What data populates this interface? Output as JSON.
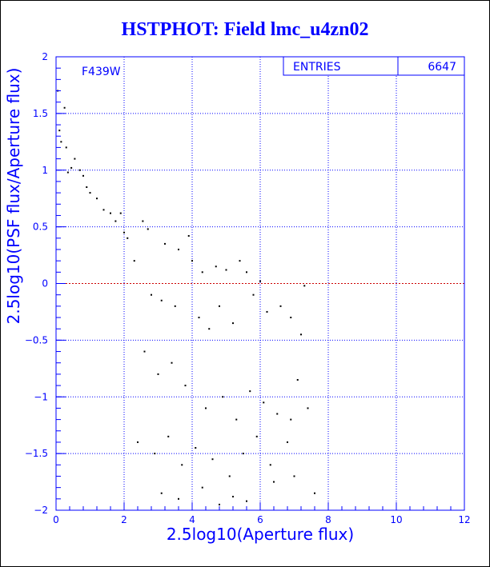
{
  "chart_data": {
    "type": "scatter",
    "title": "HSTPHOT: Field lmc_u4zn02",
    "xlabel": "2.5log10(Aperture flux)",
    "ylabel": "2.5log10(PSF flux/Aperture flux)",
    "filter_label": "F439W",
    "stats": {
      "label": "ENTRIES",
      "value": "6647"
    },
    "xlim": [
      0,
      12
    ],
    "ylim": [
      -2,
      2
    ],
    "x_ticks": [
      0,
      2,
      4,
      6,
      8,
      10,
      12
    ],
    "y_ticks": [
      -2,
      -1.5,
      -1,
      -0.5,
      0,
      0.5,
      1,
      1.5,
      2
    ],
    "x_tick_labels": [
      "0",
      "2",
      "4",
      "6",
      "8",
      "10",
      "12"
    ],
    "y_tick_labels": [
      "−2",
      "−1.5",
      "−1",
      "−0.5",
      "0",
      "0.5",
      "1",
      "1.5",
      "2"
    ],
    "grid": true,
    "reference_line": {
      "y": 0,
      "color": "#cc0000"
    },
    "colors": {
      "axis": "#0000ff",
      "grid": "#0000ff",
      "points": "#000000",
      "title": "#0000ff"
    },
    "points": [
      [
        0.05,
        1.7
      ],
      [
        0.1,
        1.35
      ],
      [
        0.15,
        1.25
      ],
      [
        0.25,
        1.55
      ],
      [
        0.3,
        1.2
      ],
      [
        0.35,
        0.98
      ],
      [
        0.45,
        1.02
      ],
      [
        0.55,
        1.1
      ],
      [
        0.7,
        1.0
      ],
      [
        0.8,
        0.95
      ],
      [
        0.9,
        0.85
      ],
      [
        1.0,
        0.8
      ],
      [
        1.2,
        0.75
      ],
      [
        1.4,
        0.65
      ],
      [
        1.6,
        0.62
      ],
      [
        1.75,
        0.55
      ],
      [
        1.9,
        0.62
      ],
      [
        2.0,
        0.45
      ],
      [
        2.1,
        0.4
      ],
      [
        2.3,
        0.2
      ],
      [
        2.55,
        0.55
      ],
      [
        2.7,
        0.48
      ],
      [
        3.2,
        0.35
      ],
      [
        3.6,
        0.3
      ],
      [
        3.9,
        0.42
      ],
      [
        4.0,
        0.2
      ],
      [
        4.3,
        0.1
      ],
      [
        4.7,
        0.15
      ],
      [
        5.0,
        0.12
      ],
      [
        5.4,
        0.2
      ],
      [
        5.6,
        0.1
      ],
      [
        6.0,
        0.02
      ],
      [
        2.8,
        -0.1
      ],
      [
        3.1,
        -0.15
      ],
      [
        3.5,
        -0.2
      ],
      [
        4.2,
        -0.3
      ],
      [
        4.5,
        -0.4
      ],
      [
        4.8,
        -0.2
      ],
      [
        5.2,
        -0.35
      ],
      [
        5.8,
        -0.1
      ],
      [
        6.2,
        -0.25
      ],
      [
        6.6,
        -0.2
      ],
      [
        6.9,
        -0.3
      ],
      [
        7.2,
        -0.45
      ],
      [
        7.3,
        -0.02
      ],
      [
        2.6,
        -0.6
      ],
      [
        3.0,
        -0.8
      ],
      [
        3.4,
        -0.7
      ],
      [
        3.8,
        -0.9
      ],
      [
        4.4,
        -1.1
      ],
      [
        4.9,
        -1.0
      ],
      [
        5.3,
        -1.2
      ],
      [
        5.7,
        -0.95
      ],
      [
        6.1,
        -1.05
      ],
      [
        6.5,
        -1.15
      ],
      [
        6.9,
        -1.2
      ],
      [
        7.1,
        -0.85
      ],
      [
        7.4,
        -1.1
      ],
      [
        2.4,
        -1.4
      ],
      [
        2.9,
        -1.5
      ],
      [
        3.3,
        -1.35
      ],
      [
        3.7,
        -1.6
      ],
      [
        4.1,
        -1.45
      ],
      [
        4.6,
        -1.55
      ],
      [
        5.1,
        -1.7
      ],
      [
        5.5,
        -1.5
      ],
      [
        5.9,
        -1.35
      ],
      [
        6.3,
        -1.6
      ],
      [
        6.8,
        -1.4
      ],
      [
        7.0,
        -1.7
      ],
      [
        7.6,
        -1.85
      ],
      [
        3.1,
        -1.85
      ],
      [
        3.6,
        -1.9
      ],
      [
        4.3,
        -1.8
      ],
      [
        4.8,
        -1.95
      ],
      [
        5.2,
        -1.88
      ],
      [
        5.6,
        -1.92
      ],
      [
        6.4,
        -1.75
      ]
    ]
  }
}
